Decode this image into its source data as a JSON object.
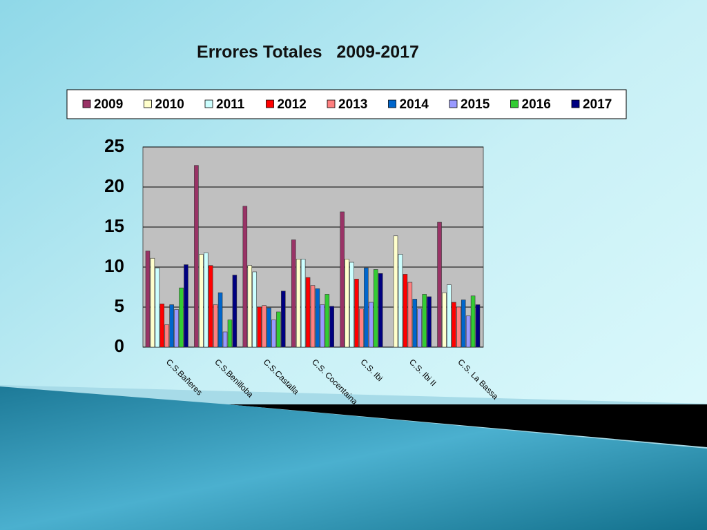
{
  "chart_data": {
    "type": "bar",
    "title": "Errores Totales   2009-2017",
    "categories": [
      "C.S.Bañeres",
      "C.S.Benilloba",
      "C.S.Castalla",
      "C.S. Cocentaina",
      "C.S. Ibi",
      "C.S. Ibi II",
      "C.S. La Bassa"
    ],
    "series": [
      {
        "name": "2009",
        "color": "#993366",
        "values": [
          12,
          22.7,
          17.6,
          13.4,
          16.9,
          0,
          15.6
        ]
      },
      {
        "name": "2010",
        "color": "#ffffcc",
        "values": [
          11.1,
          11.6,
          10.2,
          11,
          11,
          13.9,
          6.8
        ]
      },
      {
        "name": "2011",
        "color": "#ccffff",
        "values": [
          9.9,
          11.8,
          9.4,
          11,
          10.6,
          11.6,
          7.8
        ]
      },
      {
        "name": "2012",
        "color": "#ff0000",
        "values": [
          5.4,
          10.2,
          5,
          8.7,
          8.5,
          9.1,
          5.6
        ]
      },
      {
        "name": "2013",
        "color": "#ff8080",
        "values": [
          2.8,
          5.3,
          5.2,
          7.7,
          4.8,
          8.1,
          5
        ]
      },
      {
        "name": "2014",
        "color": "#0066cc",
        "values": [
          5.3,
          6.8,
          4.9,
          7.3,
          9.9,
          6,
          5.9
        ]
      },
      {
        "name": "2015",
        "color": "#9999ff",
        "values": [
          4.7,
          1.9,
          3.4,
          5.3,
          5.6,
          4.8,
          3.9
        ]
      },
      {
        "name": "2016",
        "color": "#33cc33",
        "values": [
          7.4,
          3.4,
          4.4,
          6.6,
          9.7,
          6.6,
          6.4
        ]
      },
      {
        "name": "2017",
        "color": "#000080",
        "values": [
          10.3,
          9,
          7,
          5.1,
          9.2,
          6.3,
          5.3
        ]
      }
    ],
    "ylim": [
      0,
      25
    ],
    "yticks": [
      0,
      5,
      10,
      15,
      20,
      25
    ],
    "grid": true,
    "legend": "top"
  }
}
